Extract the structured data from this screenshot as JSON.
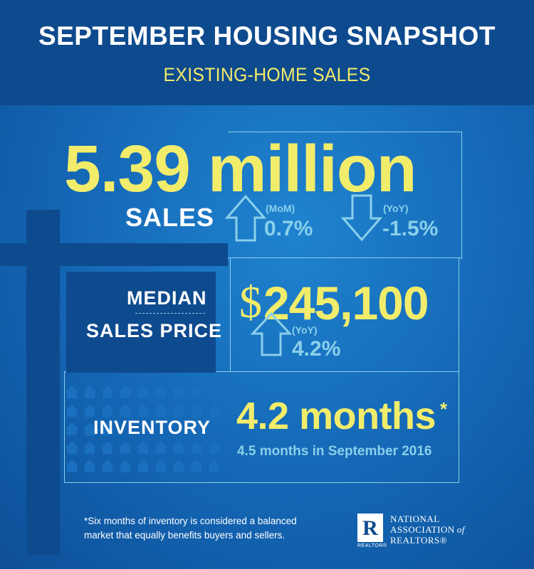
{
  "header": {
    "title": "SEPTEMBER HOUSING SNAPSHOT",
    "subtitle": "EXISTING-HOME SALES"
  },
  "sales": {
    "value": "5.39 million",
    "label": "SALES",
    "mom_label": "(MoM)",
    "mom_value": "0.7%",
    "mom_direction": "up",
    "yoy_label": "(YoY)",
    "yoy_value": "-1.5%",
    "yoy_direction": "down"
  },
  "median_price": {
    "label_line1": "MEDIAN",
    "label_line2": "SALES PRICE",
    "currency": "$",
    "value": "245,100",
    "yoy_label": "(YoY)",
    "yoy_value": "4.2%",
    "yoy_direction": "up"
  },
  "inventory": {
    "label": "INVENTORY",
    "value": "4.2 months",
    "asterisk": "*",
    "comparison": "4.5 months in September 2016"
  },
  "footnote": {
    "line1": "*Six months of inventory is considered a balanced",
    "line2": "market that equally benefits buyers and sellers."
  },
  "logo": {
    "mark": "R",
    "sub": "REALTOR®",
    "line1": "NATIONAL",
    "line2a": "ASSOCIATION",
    "line2b": "of",
    "line3": "REALTORS®"
  },
  "colors": {
    "background": "#1466b4",
    "dark_blue": "#0e4a8e",
    "yellow": "#f2ec6b",
    "light_blue": "#8ad0ea",
    "white": "#ffffff"
  }
}
